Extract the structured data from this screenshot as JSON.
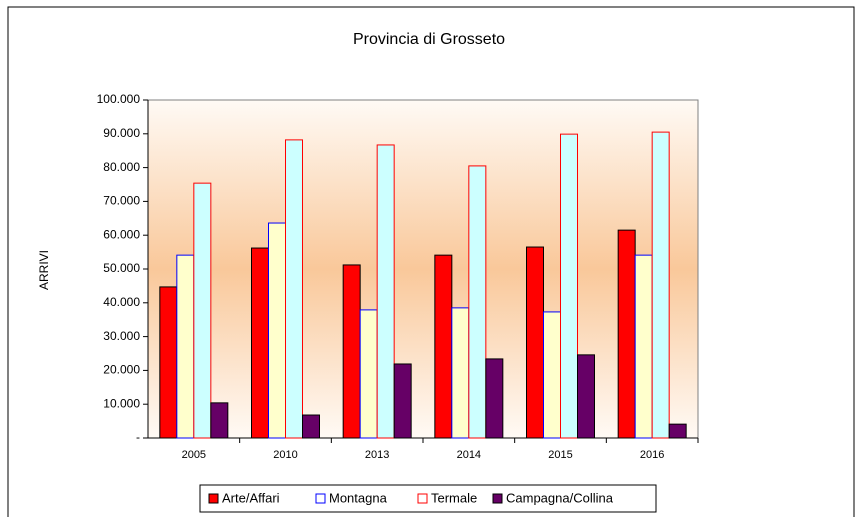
{
  "chart_data": {
    "type": "bar",
    "title": "Provincia di Grosseto",
    "ylabel": "ARRIVI",
    "categories": [
      "2005",
      "2010",
      "2013",
      "2014",
      "2015",
      "2016"
    ],
    "series": [
      {
        "name": "Arte/Affari",
        "color": "#ff0000",
        "edgecolor": "#000000",
        "values": [
          44700,
          56200,
          51200,
          54100,
          56500,
          61500
        ]
      },
      {
        "name": "Montagna",
        "color": "#ffffcc",
        "edgecolor": "#0000ff",
        "values": [
          54100,
          63600,
          37900,
          38500,
          37300,
          54100
        ]
      },
      {
        "name": "Termale",
        "color": "#ccffff",
        "edgecolor": "#ff0000",
        "values": [
          75400,
          88200,
          86700,
          80500,
          89900,
          90500
        ]
      },
      {
        "name": "Campagna/Collina",
        "color": "#660066",
        "edgecolor": "#000000",
        "values": [
          10400,
          6800,
          21900,
          23400,
          24600,
          4100
        ]
      }
    ],
    "ylim": [
      0,
      100000
    ],
    "yticks": [
      {
        "value": 0,
        "label": "-"
      },
      {
        "value": 10000,
        "label": "10.000"
      },
      {
        "value": 20000,
        "label": "20.000"
      },
      {
        "value": 30000,
        "label": "30.000"
      },
      {
        "value": 40000,
        "label": "40.000"
      },
      {
        "value": 50000,
        "label": "50.000"
      },
      {
        "value": 60000,
        "label": "60.000"
      },
      {
        "value": 70000,
        "label": "70.000"
      },
      {
        "value": 80000,
        "label": "80.000"
      },
      {
        "value": 90000,
        "label": "90.000"
      },
      {
        "value": 100000,
        "label": "100.000"
      }
    ],
    "legend": "bottom"
  }
}
